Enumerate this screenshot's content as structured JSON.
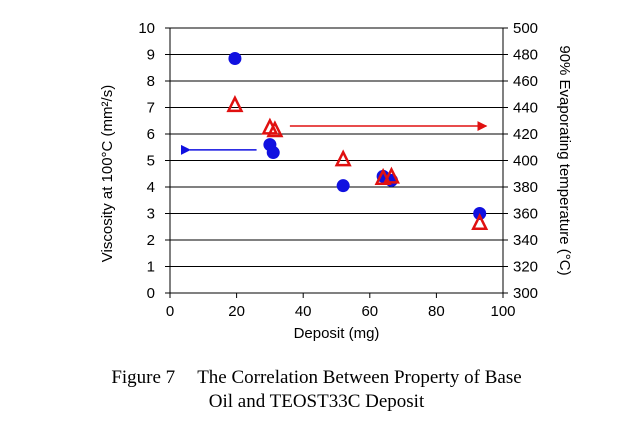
{
  "caption": {
    "number": "Figure 7",
    "line1": "The Correlation Between Property of Base",
    "line2": "Oil and TEOST33C Deposit"
  },
  "chart_data": {
    "type": "scatter",
    "title": "",
    "xlabel": "Deposit (mg)",
    "ylabel_left": "Viscosity at 100°C (mm²/s)",
    "ylabel_right": "90% Evaporating temperature (°C)",
    "xlim": [
      0,
      100
    ],
    "ylim_left": [
      0,
      10
    ],
    "ylim_right": [
      300,
      500
    ],
    "x_ticks": [
      0,
      20,
      40,
      60,
      80,
      100
    ],
    "y_left_ticks": [
      0,
      1,
      2,
      3,
      4,
      5,
      6,
      7,
      8,
      9,
      10
    ],
    "y_right_ticks": [
      300,
      320,
      340,
      360,
      380,
      400,
      420,
      440,
      460,
      480,
      500
    ],
    "grid": "horizontal",
    "legend": "none",
    "series": [
      {
        "axis": "left",
        "marker": "circle",
        "color": "#1010e0",
        "points": [
          {
            "x": 19.5,
            "y": 8.85
          },
          {
            "x": 30,
            "y": 5.6
          },
          {
            "x": 31,
            "y": 5.3
          },
          {
            "x": 52,
            "y": 4.05
          },
          {
            "x": 64,
            "y": 4.4
          },
          {
            "x": 66.5,
            "y": 4.25
          },
          {
            "x": 93,
            "y": 3.0
          }
        ]
      },
      {
        "axis": "right",
        "marker": "triangle-open",
        "color": "#e01010",
        "points": [
          {
            "x": 19.5,
            "y": 442
          },
          {
            "x": 30,
            "y": 425
          },
          {
            "x": 31.5,
            "y": 423
          },
          {
            "x": 52,
            "y": 401
          },
          {
            "x": 64,
            "y": 387
          },
          {
            "x": 66.5,
            "y": 388
          },
          {
            "x": 93,
            "y": 353
          }
        ]
      }
    ],
    "annotations": [
      {
        "type": "arrow",
        "points_to": "left",
        "color": "#1010e0",
        "x_from": 26,
        "x_to": 6,
        "y_left": 5.4
      },
      {
        "type": "arrow",
        "points_to": "right",
        "color": "#e01010",
        "x_from": 36,
        "x_to": 95,
        "y_left": 6.3
      }
    ]
  }
}
